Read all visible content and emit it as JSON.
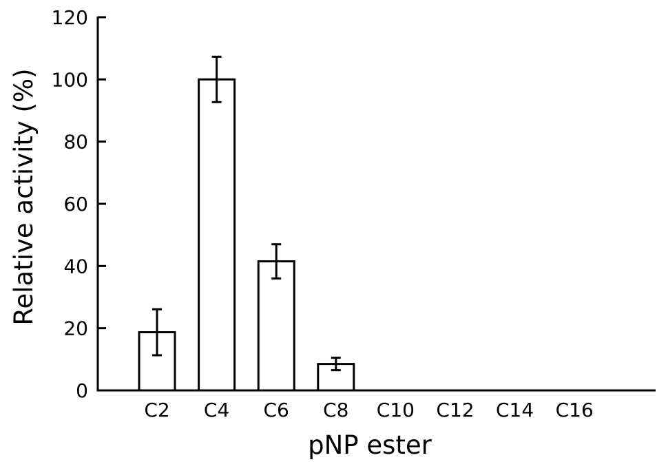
{
  "chart_data": {
    "type": "bar",
    "title": "",
    "xlabel": "pNP ester",
    "ylabel": "Relative activity (%)",
    "categories": [
      "C2",
      "C4",
      "C6",
      "C8",
      "C10",
      "C12",
      "C14",
      "C16"
    ],
    "values": [
      18.7,
      100,
      41.5,
      8.5,
      0,
      0,
      0,
      0
    ],
    "errors": [
      7.4,
      7.3,
      5.5,
      2.0,
      null,
      null,
      null,
      null
    ],
    "ylim": [
      0,
      120
    ],
    "yticks": [
      "0",
      "20",
      "40",
      "60",
      "80",
      "100",
      "120"
    ],
    "grid": false,
    "legend": "none",
    "colors": {
      "bar_fill": "#ffffff",
      "bar_stroke": "#000000",
      "axis": "#000000"
    }
  }
}
